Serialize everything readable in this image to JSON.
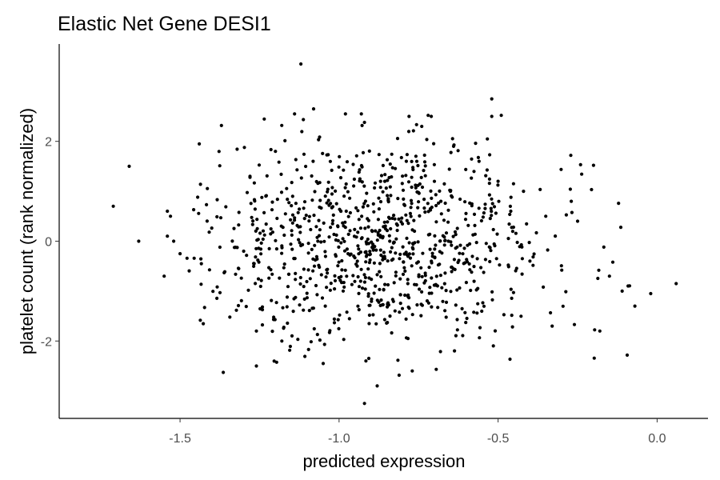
{
  "chart_data": {
    "type": "scatter",
    "title": "Elastic Net Gene DESI1",
    "xlabel": "predicted expression",
    "ylabel": "platelet count (rank normalized)",
    "xlim": [
      -1.88,
      0.16
    ],
    "ylim": [
      -3.55,
      3.95
    ],
    "xticks": [
      -1.5,
      -1.0,
      -0.5,
      0.0
    ],
    "xtick_labels": [
      "-1.5",
      "-1.0",
      "-0.5",
      "0.0"
    ],
    "yticks": [
      -2,
      0,
      2
    ],
    "ytick_labels": [
      "-2",
      "0",
      "2"
    ],
    "grid": false,
    "legend": "none",
    "point_color": "#000000",
    "n_points": 1000,
    "points_note_x": "x = predicted expression, y = platelet count",
    "x": [
      -1.71,
      -1.66,
      -1.63,
      -1.55,
      -1.54,
      -1.54,
      -1.53,
      -1.52,
      -1.5,
      -1.12,
      -0.52,
      -0.52,
      -0.02,
      0.06,
      -0.07,
      -0.11,
      -0.15,
      -0.18,
      -0.2,
      -0.26,
      -0.33,
      -0.4,
      -0.49,
      -0.65,
      -0.71,
      -0.74,
      -0.77,
      -0.84,
      -0.88,
      -0.92,
      -1.05,
      -1.18,
      -1.26,
      -1.26,
      -1.3,
      -1.28,
      -1.2,
      -1.14,
      -1.08,
      -0.98,
      -0.93,
      -0.78,
      -0.72,
      -0.64,
      -0.56,
      -0.5,
      -0.46,
      -0.42,
      -0.35,
      -0.27,
      -0.25
    ],
    "y": [
      0.7,
      1.5,
      0.0,
      -0.7,
      0.1,
      0.6,
      0.5,
      0.0,
      -0.25,
      3.55,
      2.85,
      2.5,
      -1.05,
      -0.85,
      -1.3,
      -1.0,
      -0.7,
      -1.8,
      1.52,
      -1.67,
      -1.7,
      -0.4,
      2.52,
      1.0,
      2.5,
      2.3,
      -2.6,
      -1.5,
      -2.9,
      -3.25,
      -2.45,
      -2.0,
      -1.8,
      -2.5,
      -0.2,
      1.3,
      1.8,
      2.55,
      2.65,
      2.55,
      2.55,
      2.5,
      2.52,
      1.9,
      1.6,
      1.2,
      0.6,
      1.0,
      0.5,
      0.8,
      0.4
    ]
  }
}
